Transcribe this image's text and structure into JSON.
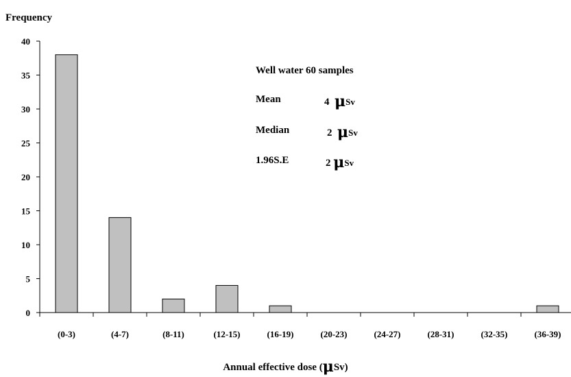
{
  "chart_data": {
    "type": "bar",
    "ylabel": "Frequency",
    "xlabel": "Annual effective dose (",
    "xlabel_unit": "Sv)",
    "mu_symbol": "μ",
    "categories": [
      "(0-3)",
      "(4-7)",
      "(8-11)",
      "(12-15)",
      "(16-19)",
      "(20-23)",
      "(24-27)",
      "(28-31)",
      "(32-35)",
      "(36-39)"
    ],
    "values": [
      38,
      14,
      2,
      4,
      1,
      0,
      0,
      0,
      0,
      1
    ],
    "ylim": [
      0,
      40
    ],
    "yticks": [
      0,
      5,
      10,
      15,
      20,
      25,
      30,
      35,
      40
    ],
    "bar_color": "#c0c0c0",
    "grid": false,
    "annotations": {
      "title": "Well water 60 samples",
      "stats": [
        {
          "label": "Mean",
          "value": "4",
          "unit": "Sv"
        },
        {
          "label": "Median",
          "value": "2",
          "unit": "Sv"
        },
        {
          "label": "1.96S.E",
          "value": "2",
          "unit": "Sv"
        }
      ]
    }
  }
}
